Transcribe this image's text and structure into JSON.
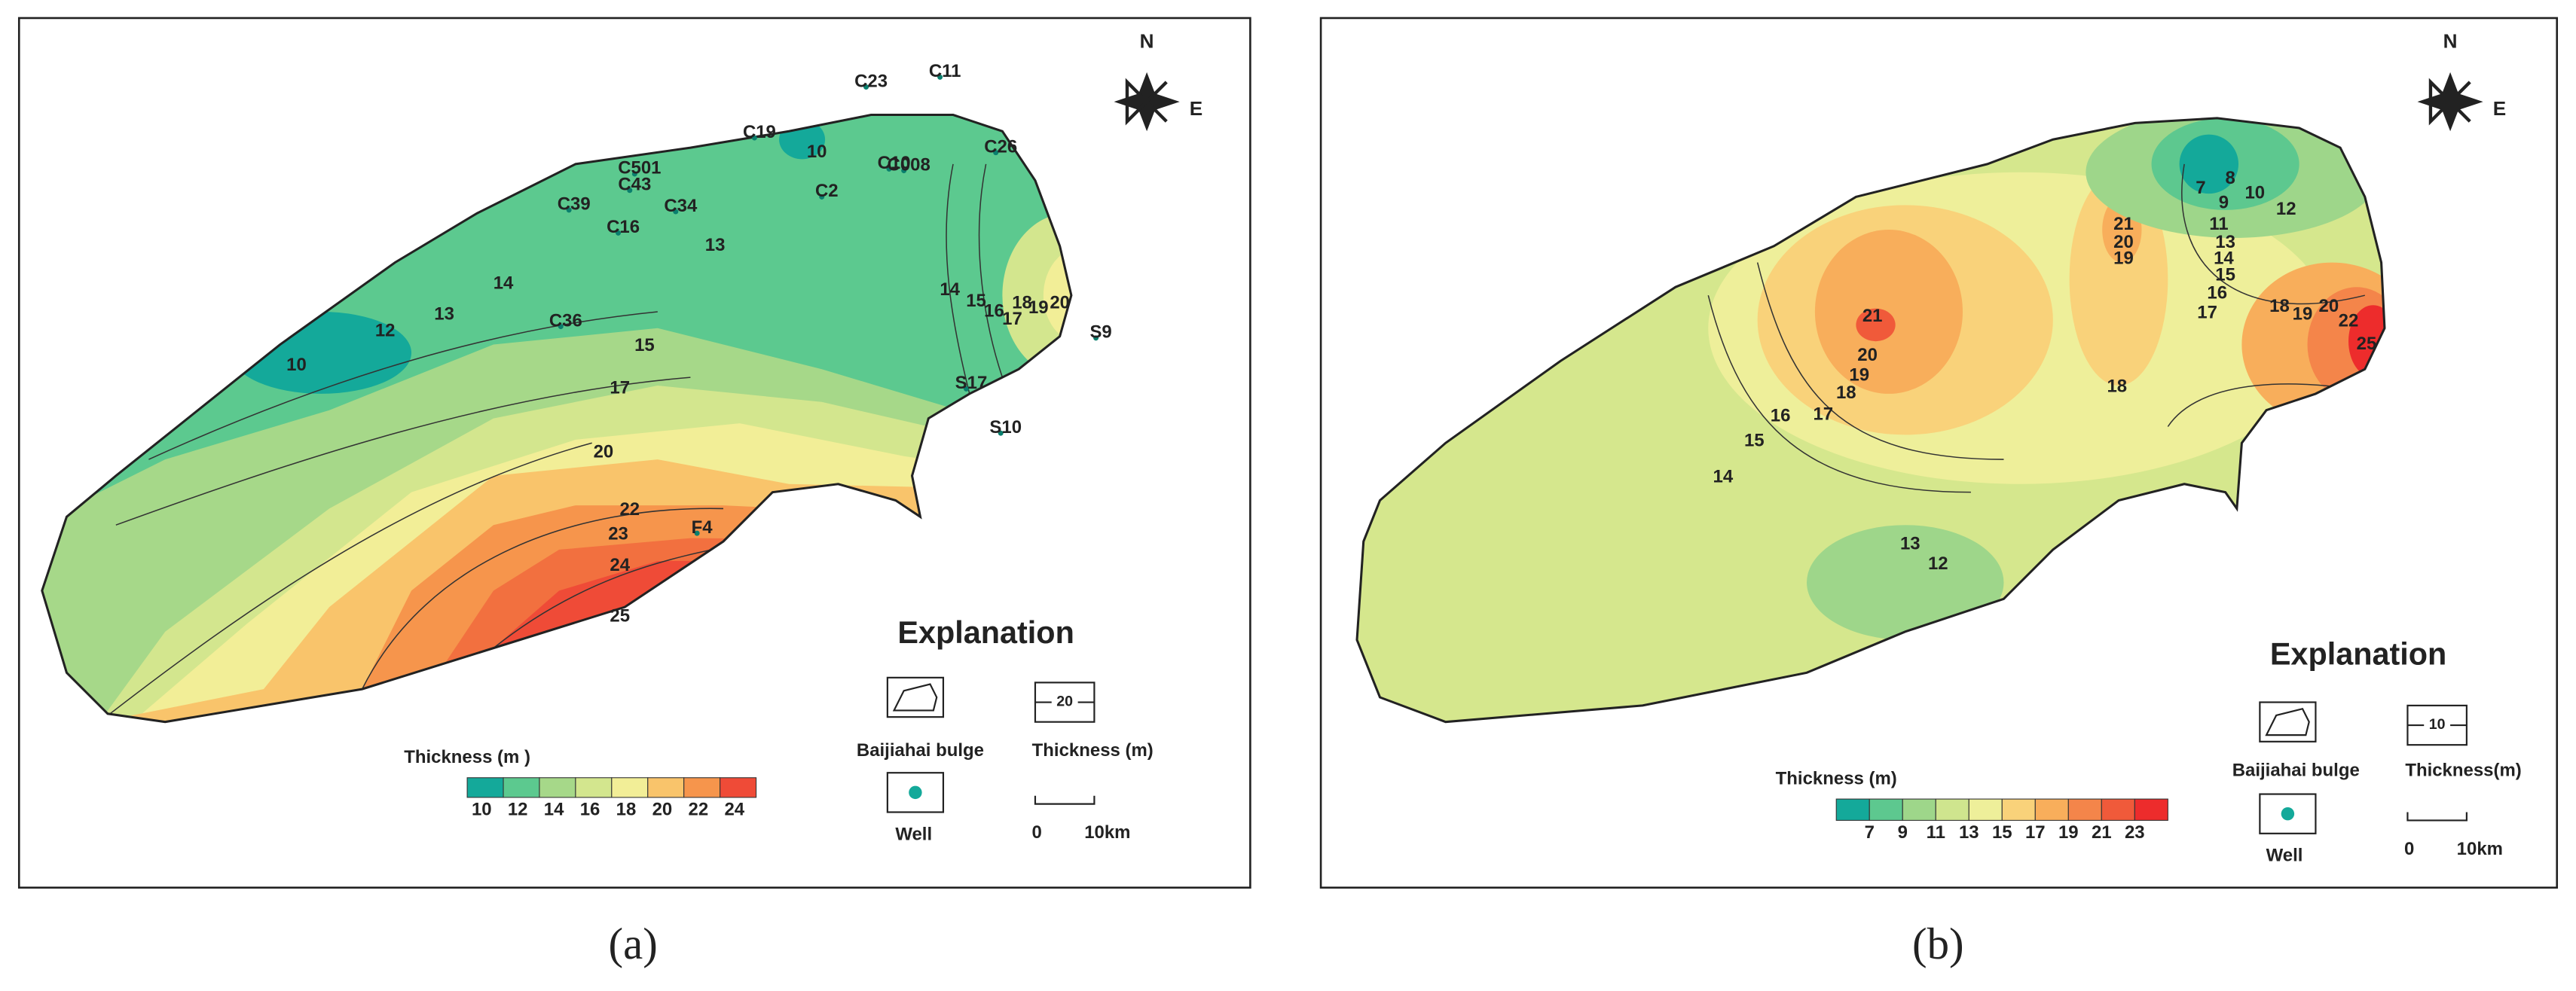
{
  "panels": [
    {
      "caption": "(a)",
      "compass": {
        "north": "N",
        "east": "E"
      },
      "wells": [
        "C23",
        "C11",
        "C19",
        "C501",
        "C43",
        "C34",
        "C39",
        "C16",
        "C10",
        "C008",
        "C26",
        "C2",
        "C36",
        "S9",
        "S17",
        "S10",
        "F4"
      ],
      "contour_labels": [
        10,
        12,
        13,
        14,
        10,
        13,
        15,
        17,
        20,
        22,
        23,
        24,
        25,
        14,
        15,
        16,
        17,
        18,
        19,
        20
      ],
      "explanation": {
        "title": "Explanation",
        "boundary": "Baijiahai  bulge",
        "contour_sample": 20,
        "contour": "Thickness (m)",
        "well": "Well",
        "scale_start": 0,
        "scale_end": "10km"
      },
      "legend": {
        "title": "Thickness (m )",
        "colors": [
          "#14a99a",
          "#5cc98f",
          "#a6d889",
          "#d3e68e",
          "#f2ee97",
          "#f9c46b",
          "#f6954c",
          "#ef4b37"
        ],
        "ticks": [
          10,
          12,
          14,
          16,
          18,
          20,
          22,
          24
        ]
      }
    },
    {
      "caption": "(b)",
      "compass": {
        "north": "N",
        "east": "E"
      },
      "wells": [],
      "contour_labels": [
        21,
        20,
        19,
        18,
        17,
        16,
        15,
        14,
        13,
        12,
        21,
        20,
        19,
        18,
        7,
        8,
        9,
        10,
        11,
        12,
        13,
        14,
        15,
        16,
        17,
        18,
        19,
        20,
        22,
        25
      ],
      "explanation": {
        "title": "Explanation",
        "boundary": "Baijiahai  bulge",
        "contour_sample": 10,
        "contour": "Thickness(m)",
        "well": "Well",
        "scale_start": 0,
        "scale_end": "10km"
      },
      "legend": {
        "title": "Thickness (m)",
        "colors": [
          "#14a99a",
          "#5dc88f",
          "#9ed68a",
          "#cfe58e",
          "#eeef9a",
          "#f9d27a",
          "#f8ae5b",
          "#f4854a",
          "#f05a3a",
          "#ed2c2c"
        ],
        "ticks": [
          7,
          9,
          11,
          13,
          15,
          17,
          19,
          21,
          23
        ]
      }
    }
  ]
}
